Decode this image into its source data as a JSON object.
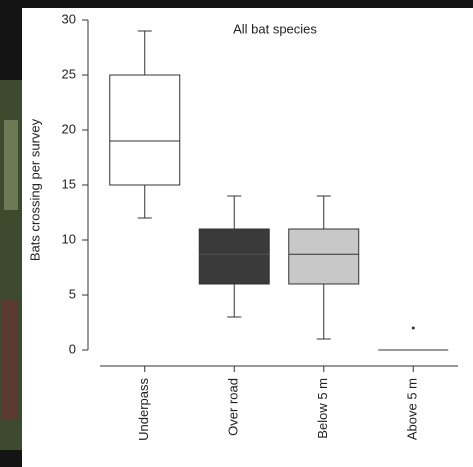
{
  "chart_data": {
    "type": "box",
    "title": "All bat species",
    "y_label": "Bats crossing per survey",
    "categories": [
      "Underpass",
      "Over road",
      "Below 5 m",
      "Above 5 m"
    ],
    "boxes": [
      {
        "min": 12,
        "q1": 15,
        "median": 19,
        "q3": 25,
        "max": 29,
        "outliers": [],
        "color": "#ffffff"
      },
      {
        "min": 3,
        "q1": 6,
        "median": 8.7,
        "q3": 11,
        "max": 14,
        "outliers": [],
        "color": "#3a3a3a"
      },
      {
        "min": 1,
        "q1": 6,
        "median": 8.7,
        "q3": 11,
        "max": 14,
        "outliers": [],
        "color": "#c8c8c8"
      },
      {
        "min": 0,
        "q1": 0,
        "median": 0,
        "q3": 0,
        "max": 0,
        "outliers": [
          2
        ],
        "color": "#ffffff"
      }
    ],
    "ylim": [
      0,
      30
    ],
    "yticks": [
      0,
      5,
      10,
      15,
      20,
      25,
      30
    ]
  }
}
